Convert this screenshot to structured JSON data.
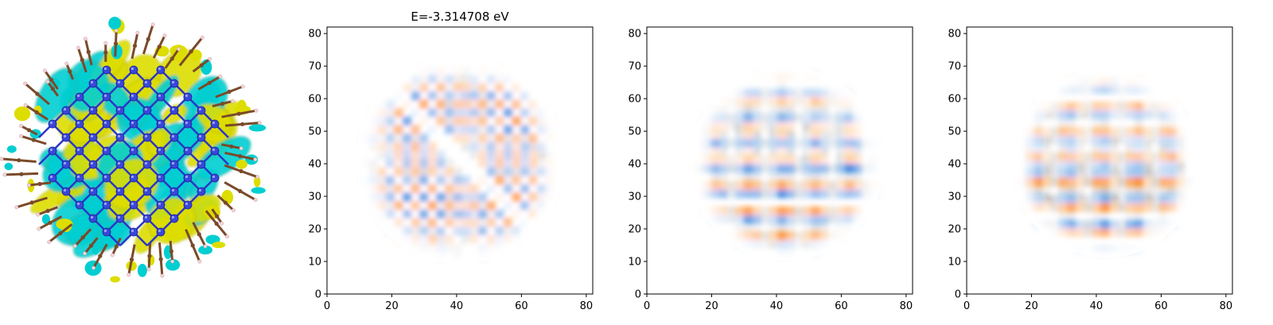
{
  "chart_data": [
    {
      "type": "image",
      "description": "molecular orbital isosurface render of a ligand-capped nanocluster",
      "colors": {
        "positive_lobe": "#00CED1",
        "negative_lobe": "#DDDD00",
        "atom_core": "#3A46D8",
        "bond": "#2B36C9",
        "ligand_carbon": "#7A4A2A",
        "hydrogen": "#F0D6D6"
      }
    },
    {
      "type": "heatmap",
      "title": "E=-3.314708 eV",
      "xlabel": "",
      "ylabel": "",
      "xlim": [
        0,
        82
      ],
      "ylim": [
        0,
        82
      ],
      "xticks": [
        0,
        20,
        40,
        60,
        80
      ],
      "yticks": [
        0,
        10,
        20,
        30,
        40,
        50,
        60,
        70,
        80
      ],
      "colormap": [
        "#1E78DC",
        "#000000",
        "#FF7F0E"
      ],
      "pattern": "diagonal",
      "center": [
        41,
        41
      ],
      "radius": 26
    },
    {
      "type": "heatmap",
      "title": "",
      "xlabel": "",
      "ylabel": "",
      "xlim": [
        0,
        82
      ],
      "ylim": [
        0,
        82
      ],
      "xticks": [
        0,
        20,
        40,
        60,
        80
      ],
      "yticks": [
        0,
        10,
        20,
        30,
        40,
        50,
        60,
        70,
        80
      ],
      "colormap": [
        "#1E78DC",
        "#000000",
        "#FF7F0E"
      ],
      "pattern": "horizontal",
      "center": [
        43,
        40
      ],
      "radius": 24
    },
    {
      "type": "heatmap",
      "title": "",
      "xlabel": "",
      "ylabel": "",
      "xlim": [
        0,
        82
      ],
      "ylim": [
        0,
        82
      ],
      "xticks": [
        0,
        20,
        40,
        60,
        80
      ],
      "yticks": [
        0,
        10,
        20,
        30,
        40,
        50,
        60,
        70,
        80
      ],
      "colormap": [
        "#1E78DC",
        "#000000",
        "#FF7F0E"
      ],
      "pattern": "horizontal",
      "center": [
        43,
        40
      ],
      "radius": 23
    }
  ]
}
